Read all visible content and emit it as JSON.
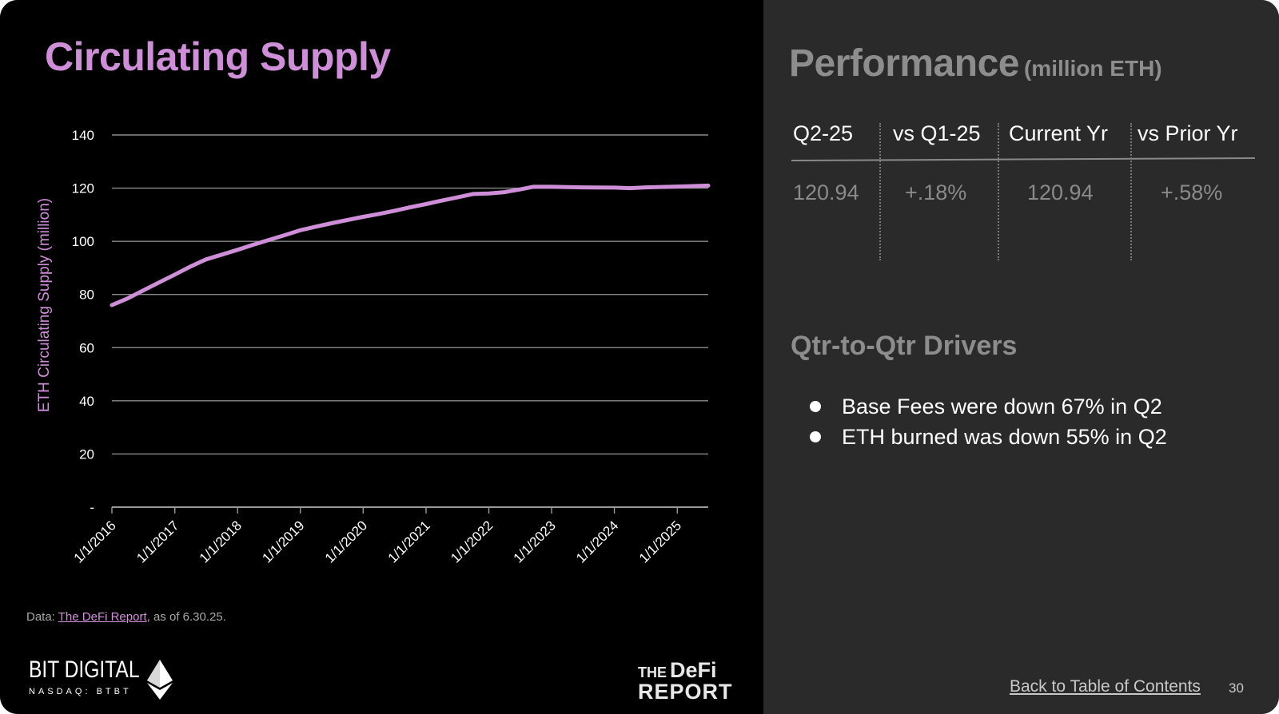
{
  "left_title": "Circulating Supply",
  "source": {
    "prefix": "Data: ",
    "link_text": "The DeFi Report",
    "suffix": ", as of 6.30.25."
  },
  "logos": {
    "bit_digital_name": "BIT DIGITAL",
    "bit_digital_ticker": "NASDAQ: BTBT",
    "defi_the": "THE",
    "defi_defi": "DeFi",
    "defi_report": "REPORT"
  },
  "chart_data": {
    "type": "line",
    "title": "Circulating Supply",
    "ylabel": "ETH Circulating Supply (million)",
    "xlabel": "",
    "ylim": [
      0,
      140
    ],
    "yticks": [
      0,
      20,
      40,
      60,
      80,
      100,
      120,
      140
    ],
    "ytick_labels": [
      "-",
      "20",
      "40",
      "60",
      "80",
      "100",
      "120",
      "140"
    ],
    "xlim": [
      "2016-01-01",
      "2025-06-30"
    ],
    "xticks": [
      "2016-01-01",
      "2017-01-01",
      "2018-01-01",
      "2019-01-01",
      "2020-01-01",
      "2021-01-01",
      "2022-01-01",
      "2023-01-01",
      "2024-01-01",
      "2025-01-01"
    ],
    "xtick_labels": [
      "1/1/2016",
      "1/1/2017",
      "1/1/2018",
      "1/1/2019",
      "1/1/2020",
      "1/1/2021",
      "1/1/2022",
      "1/1/2023",
      "1/1/2024",
      "1/1/2025"
    ],
    "grid": true,
    "line_color": "#cf8fd8",
    "series": [
      {
        "x": [
          "2016-01-01",
          "2016-04-01",
          "2016-07-01",
          "2016-10-01",
          "2017-01-01",
          "2017-04-01",
          "2017-07-01",
          "2017-10-01",
          "2018-01-01",
          "2018-04-01",
          "2018-07-01",
          "2018-10-01",
          "2019-01-01",
          "2019-04-01",
          "2019-07-01",
          "2019-10-01",
          "2020-01-01",
          "2020-04-01",
          "2020-07-01",
          "2020-10-01",
          "2021-01-01",
          "2021-04-01",
          "2021-07-01",
          "2021-10-01",
          "2022-01-01",
          "2022-04-01",
          "2022-07-01",
          "2022-09-15",
          "2023-01-01",
          "2023-07-01",
          "2024-01-01",
          "2024-04-01",
          "2024-07-01",
          "2025-01-01",
          "2025-06-30"
        ],
        "y": [
          76.0,
          78.5,
          81.5,
          84.5,
          87.5,
          90.5,
          93.2,
          95.0,
          96.8,
          98.7,
          100.5,
          102.3,
          104.2,
          105.5,
          106.8,
          108.0,
          109.2,
          110.3,
          111.5,
          112.8,
          114.0,
          115.3,
          116.5,
          117.8,
          118.0,
          118.5,
          119.5,
          120.5,
          120.5,
          120.3,
          120.2,
          120.0,
          120.3,
          120.6,
          120.94
        ]
      }
    ]
  },
  "performance": {
    "title": "Performance",
    "unit": "(million ETH)",
    "headers": [
      "Q2-25",
      "vs Q1-25",
      "Current Yr",
      "vs Prior Yr"
    ],
    "values": [
      "120.94",
      "+.18%",
      "120.94",
      "+.58%"
    ]
  },
  "drivers": {
    "title": "Qtr-to-Qtr Drivers",
    "items": [
      "Base Fees were down 67% in Q2",
      "ETH burned was down 55% in Q2"
    ]
  },
  "footer": {
    "toc_link": "Back to Table of Contents",
    "page_number": "30"
  }
}
